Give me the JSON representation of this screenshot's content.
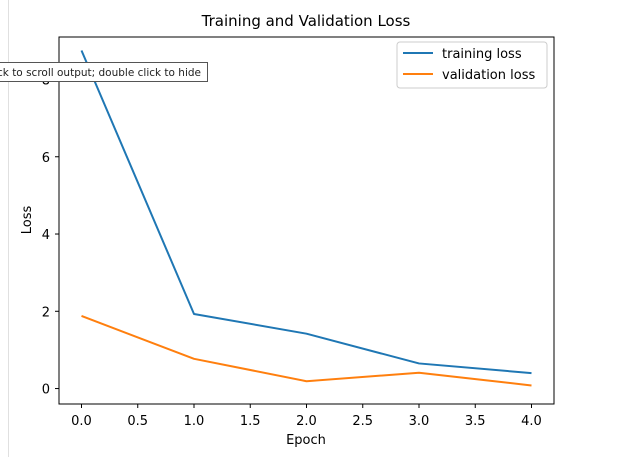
{
  "tooltip": {
    "text": "ck to scroll output; double click to hide"
  },
  "colors": {
    "training": "#1f77b4",
    "validation": "#ff7f0e"
  },
  "chart_data": {
    "type": "line",
    "title": "Training and Validation Loss",
    "xlabel": "Epoch",
    "ylabel": "Loss",
    "xlim": [
      -0.2,
      4.2
    ],
    "ylim": [
      -0.4,
      9.1
    ],
    "xticks": [
      0.0,
      0.5,
      1.0,
      1.5,
      2.0,
      2.5,
      3.0,
      3.5,
      4.0
    ],
    "xtick_labels": [
      "0.0",
      "0.5",
      "1.0",
      "1.5",
      "2.0",
      "2.5",
      "3.0",
      "3.5",
      "4.0"
    ],
    "yticks": [
      0,
      2,
      4,
      6,
      8
    ],
    "ytick_labels": [
      "0",
      "2",
      "4",
      "6",
      "8"
    ],
    "grid": false,
    "legend_position": "top-right",
    "x": [
      0,
      1,
      2,
      3,
      4
    ],
    "series": [
      {
        "name": "training loss",
        "color": "#1f77b4",
        "values": [
          8.75,
          1.93,
          1.42,
          0.65,
          0.4
        ]
      },
      {
        "name": "validation loss",
        "color": "#ff7f0e",
        "values": [
          1.88,
          0.77,
          0.19,
          0.41,
          0.08
        ]
      }
    ]
  }
}
